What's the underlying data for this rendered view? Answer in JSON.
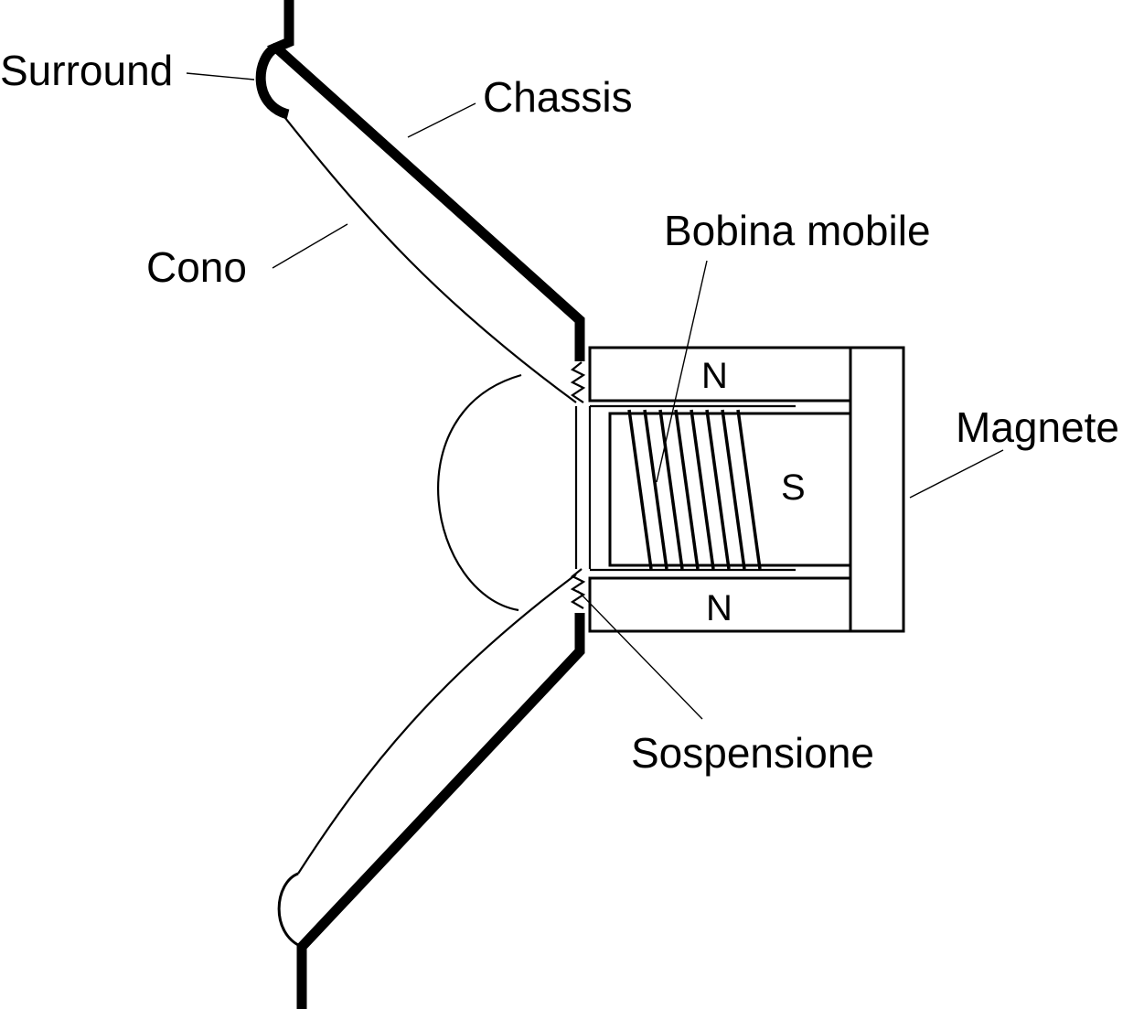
{
  "labels": {
    "surround": "Surround",
    "chassis": "Chassis",
    "cone": "Cono",
    "voice_coil": "Bobina mobile",
    "magnet": "Magnete",
    "suspension": "Sospensione"
  },
  "poles": {
    "north_top": "N",
    "south": "S",
    "north_bottom": "N"
  },
  "colors": {
    "ink": "#000000",
    "background": "#ffffff"
  }
}
